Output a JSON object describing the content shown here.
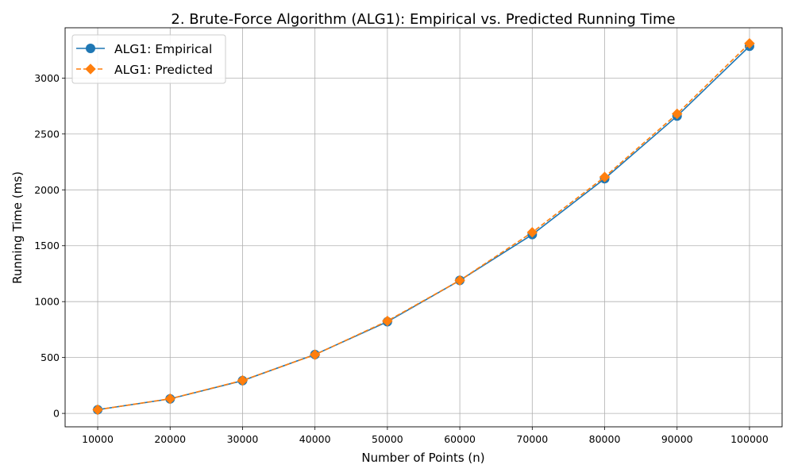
{
  "chart_data": {
    "type": "line",
    "title": "2. Brute-Force Algorithm (ALG1): Empirical vs. Predicted Running Time",
    "xlabel": "Number of Points (n)",
    "ylabel": "Running Time (ms)",
    "x": [
      10000,
      20000,
      30000,
      40000,
      50000,
      60000,
      70000,
      80000,
      90000,
      100000
    ],
    "xlim": [
      5500,
      104500
    ],
    "ylim": [
      -120,
      3450
    ],
    "yticks": [
      0,
      500,
      1000,
      1500,
      2000,
      2500,
      3000
    ],
    "grid": true,
    "legend_position": "top-left",
    "series": [
      {
        "name": "ALG1: Empirical",
        "color": "#1f77b4",
        "marker": "circle",
        "linestyle": "solid",
        "values": [
          33,
          130,
          293,
          527,
          820,
          1190,
          1600,
          2100,
          2660,
          3285
        ]
      },
      {
        "name": "ALG1: Predicted",
        "color": "#ff7f0e",
        "marker": "diamond",
        "linestyle": "dashed",
        "values": [
          33,
          131,
          295,
          525,
          827,
          1190,
          1620,
          2115,
          2680,
          3310
        ]
      }
    ]
  }
}
